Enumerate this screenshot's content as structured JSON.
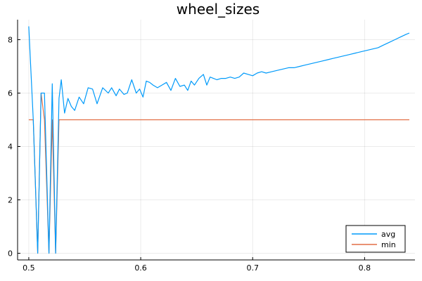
{
  "chart_data": {
    "type": "line",
    "title": "wheel_sizes",
    "xlabel": "",
    "ylabel": "",
    "xlim": [
      0.49,
      0.845
    ],
    "ylim": [
      -0.25,
      8.75
    ],
    "xticks": [
      0.5,
      0.6,
      0.7,
      0.8
    ],
    "xtick_labels": [
      "0.5",
      "0.6",
      "0.7",
      "0.8"
    ],
    "yticks": [
      0,
      2,
      4,
      6,
      8
    ],
    "ytick_labels": [
      "0",
      "2",
      "4",
      "6",
      "8"
    ],
    "grid": true,
    "legend_position": "bottom-right",
    "series": [
      {
        "name": "avg",
        "color": "#009AFA",
        "x": [
          0.5,
          0.504,
          0.508,
          0.511,
          0.514,
          0.518,
          0.521,
          0.524,
          0.527,
          0.529,
          0.532,
          0.535,
          0.538,
          0.541,
          0.545,
          0.549,
          0.553,
          0.557,
          0.561,
          0.566,
          0.571,
          0.574,
          0.578,
          0.581,
          0.585,
          0.588,
          0.592,
          0.596,
          0.599,
          0.602,
          0.605,
          0.608,
          0.611,
          0.615,
          0.619,
          0.623,
          0.627,
          0.631,
          0.635,
          0.639,
          0.642,
          0.645,
          0.648,
          0.652,
          0.656,
          0.659,
          0.662,
          0.665,
          0.668,
          0.672,
          0.676,
          0.68,
          0.684,
          0.688,
          0.692,
          0.696,
          0.7,
          0.704,
          0.708,
          0.712,
          0.717,
          0.722,
          0.727,
          0.732,
          0.737,
          0.742,
          0.747,
          0.752,
          0.757,
          0.762,
          0.767,
          0.772,
          0.777,
          0.782,
          0.787,
          0.792,
          0.797,
          0.802,
          0.807,
          0.812,
          0.817,
          0.822,
          0.827,
          0.832,
          0.837,
          0.84
        ],
        "values": [
          8.5,
          5.0,
          0.0,
          6.0,
          6.0,
          0.0,
          6.35,
          0.0,
          5.8,
          6.5,
          5.25,
          5.8,
          5.5,
          5.35,
          5.85,
          5.6,
          6.2,
          6.15,
          5.6,
          6.2,
          6.0,
          6.2,
          5.9,
          6.15,
          5.95,
          6.0,
          6.5,
          6.0,
          6.15,
          5.85,
          6.45,
          6.4,
          6.3,
          6.2,
          6.3,
          6.4,
          6.1,
          6.55,
          6.25,
          6.3,
          6.1,
          6.45,
          6.3,
          6.55,
          6.7,
          6.3,
          6.6,
          6.55,
          6.5,
          6.55,
          6.55,
          6.6,
          6.55,
          6.6,
          6.75,
          6.7,
          6.65,
          6.75,
          6.8,
          6.75,
          6.8,
          6.85,
          6.9,
          6.95,
          6.95,
          7.0,
          7.05,
          7.1,
          7.15,
          7.2,
          7.25,
          7.3,
          7.35,
          7.4,
          7.45,
          7.5,
          7.55,
          7.6,
          7.65,
          7.7,
          7.8,
          7.9,
          8.0,
          8.1,
          8.2,
          8.25
        ]
      },
      {
        "name": "min",
        "color": "#E26F46",
        "x": [
          0.5,
          0.504,
          0.508,
          0.511,
          0.514,
          0.518,
          0.521,
          0.524,
          0.527,
          0.84
        ],
        "values": [
          5.0,
          5.0,
          0.0,
          6.0,
          5.0,
          0.0,
          5.0,
          0.0,
          5.0,
          5.0
        ]
      }
    ]
  }
}
